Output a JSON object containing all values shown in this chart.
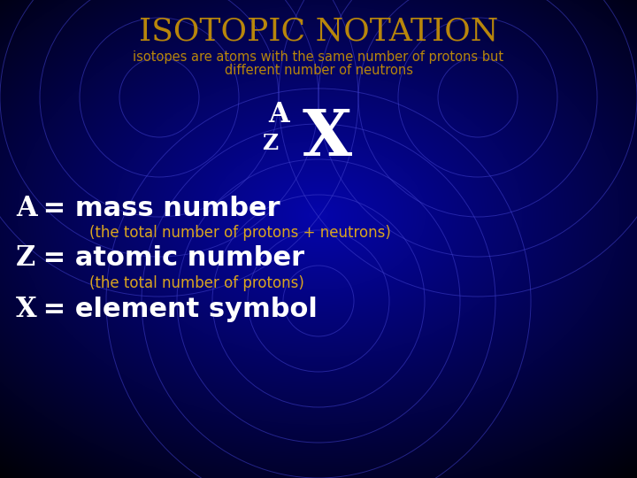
{
  "title": "ISOTOPIC NOTATION",
  "subtitle_line1": "isotopes are atoms with the same number of protons but",
  "subtitle_line2": "different number of neutrons",
  "title_color": "#B8860B",
  "subtitle_color": "#B8860B",
  "parenthetical_color": "#DAA520",
  "text_white": "#FFFFFF",
  "circle_color": "#4040CC",
  "label_A": "A",
  "label_Z": "Z",
  "label_X": "X",
  "line1_left": "A",
  "line1_right": " = mass number",
  "line2": "    (the total number of protons + neutrons)",
  "line3_left": "Z",
  "line3_right": " = atomic number",
  "line4": "    (the total number of protons)",
  "line5_left": "X",
  "line5_right": " = element symbol",
  "figsize": [
    7.2,
    5.4
  ],
  "dpi": 100
}
